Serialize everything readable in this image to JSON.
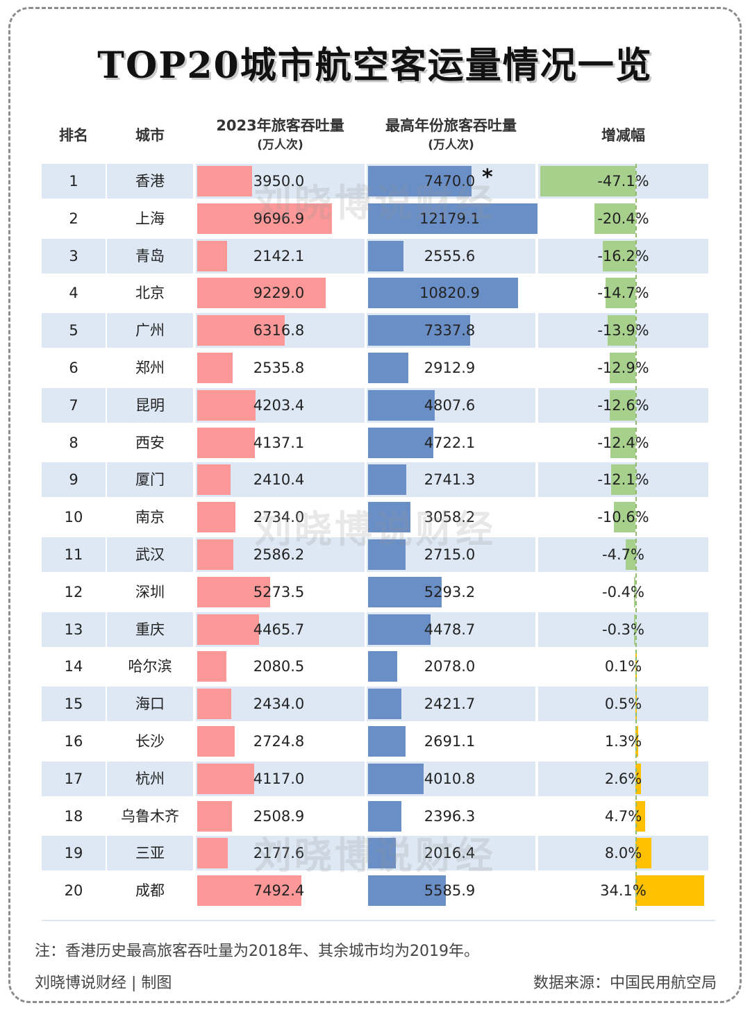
{
  "title": "TOP20城市航空客运量情况一览",
  "headers": {
    "rank": "排名",
    "city": "城市",
    "col_2023": "2023年旅客吞吐量",
    "col_2023_unit": "(万人次)",
    "col_peak": "最高年份旅客吞吐量",
    "col_peak_unit": "(万人次)",
    "change": "增减幅"
  },
  "peak_marker": "*",
  "watermark": "刘晓博说财经",
  "note": "注：香港历史最高旅客吞吐量为2018年、其余城市均为2019年。",
  "credit": "刘晓博说财经 | 制图",
  "source": "数据来源：中国民用航空局",
  "colors": {
    "bar_2023": "#fd9899",
    "bar_peak": "#6a8fc7",
    "change_negative": "#a8d08d",
    "change_positive": "#ffc000",
    "row_band": "#dde8f4"
  },
  "chart_data": {
    "type": "table",
    "columns": [
      "排名",
      "城市",
      "2023年旅客吞吐量(万人次)",
      "最高年份旅客吞吐量(万人次)",
      "增减幅"
    ],
    "rows": [
      {
        "rank": "1",
        "city": "香港",
        "v2023": "3950.0",
        "peak": "7470.0",
        "change": "-47.1%",
        "change_value": -47.1,
        "marked": true
      },
      {
        "rank": "2",
        "city": "上海",
        "v2023": "9696.9",
        "peak": "12179.1",
        "change": "-20.4%",
        "change_value": -20.4
      },
      {
        "rank": "3",
        "city": "青岛",
        "v2023": "2142.1",
        "peak": "2555.6",
        "change": "-16.2%",
        "change_value": -16.2
      },
      {
        "rank": "4",
        "city": "北京",
        "v2023": "9229.0",
        "peak": "10820.9",
        "change": "-14.7%",
        "change_value": -14.7
      },
      {
        "rank": "5",
        "city": "广州",
        "v2023": "6316.8",
        "peak": "7337.8",
        "change": "-13.9%",
        "change_value": -13.9
      },
      {
        "rank": "6",
        "city": "郑州",
        "v2023": "2535.8",
        "peak": "2912.9",
        "change": "-12.9%",
        "change_value": -12.9
      },
      {
        "rank": "7",
        "city": "昆明",
        "v2023": "4203.4",
        "peak": "4807.6",
        "change": "-12.6%",
        "change_value": -12.6
      },
      {
        "rank": "8",
        "city": "西安",
        "v2023": "4137.1",
        "peak": "4722.1",
        "change": "-12.4%",
        "change_value": -12.4
      },
      {
        "rank": "9",
        "city": "厦门",
        "v2023": "2410.4",
        "peak": "2741.3",
        "change": "-12.1%",
        "change_value": -12.1
      },
      {
        "rank": "10",
        "city": "南京",
        "v2023": "2734.0",
        "peak": "3058.2",
        "change": "-10.6%",
        "change_value": -10.6
      },
      {
        "rank": "11",
        "city": "武汉",
        "v2023": "2586.2",
        "peak": "2715.0",
        "change": "-4.7%",
        "change_value": -4.7
      },
      {
        "rank": "12",
        "city": "深圳",
        "v2023": "5273.5",
        "peak": "5293.2",
        "change": "-0.4%",
        "change_value": -0.4
      },
      {
        "rank": "13",
        "city": "重庆",
        "v2023": "4465.7",
        "peak": "4478.7",
        "change": "-0.3%",
        "change_value": -0.3
      },
      {
        "rank": "14",
        "city": "哈尔滨",
        "v2023": "2080.5",
        "peak": "2078.0",
        "change": "0.1%",
        "change_value": 0.1
      },
      {
        "rank": "15",
        "city": "海口",
        "v2023": "2434.0",
        "peak": "2421.7",
        "change": "0.5%",
        "change_value": 0.5
      },
      {
        "rank": "16",
        "city": "长沙",
        "v2023": "2724.8",
        "peak": "2691.1",
        "change": "1.3%",
        "change_value": 1.3
      },
      {
        "rank": "17",
        "city": "杭州",
        "v2023": "4117.0",
        "peak": "4010.8",
        "change": "2.6%",
        "change_value": 2.6
      },
      {
        "rank": "18",
        "city": "乌鲁木齐",
        "v2023": "2508.9",
        "peak": "2396.3",
        "change": "4.7%",
        "change_value": 4.7
      },
      {
        "rank": "19",
        "city": "三亚",
        "v2023": "2177.6",
        "peak": "2016.4",
        "change": "8.0%",
        "change_value": 8.0
      },
      {
        "rank": "20",
        "city": "成都",
        "v2023": "7492.4",
        "peak": "5585.9",
        "change": "34.1%",
        "change_value": 34.1
      }
    ]
  }
}
